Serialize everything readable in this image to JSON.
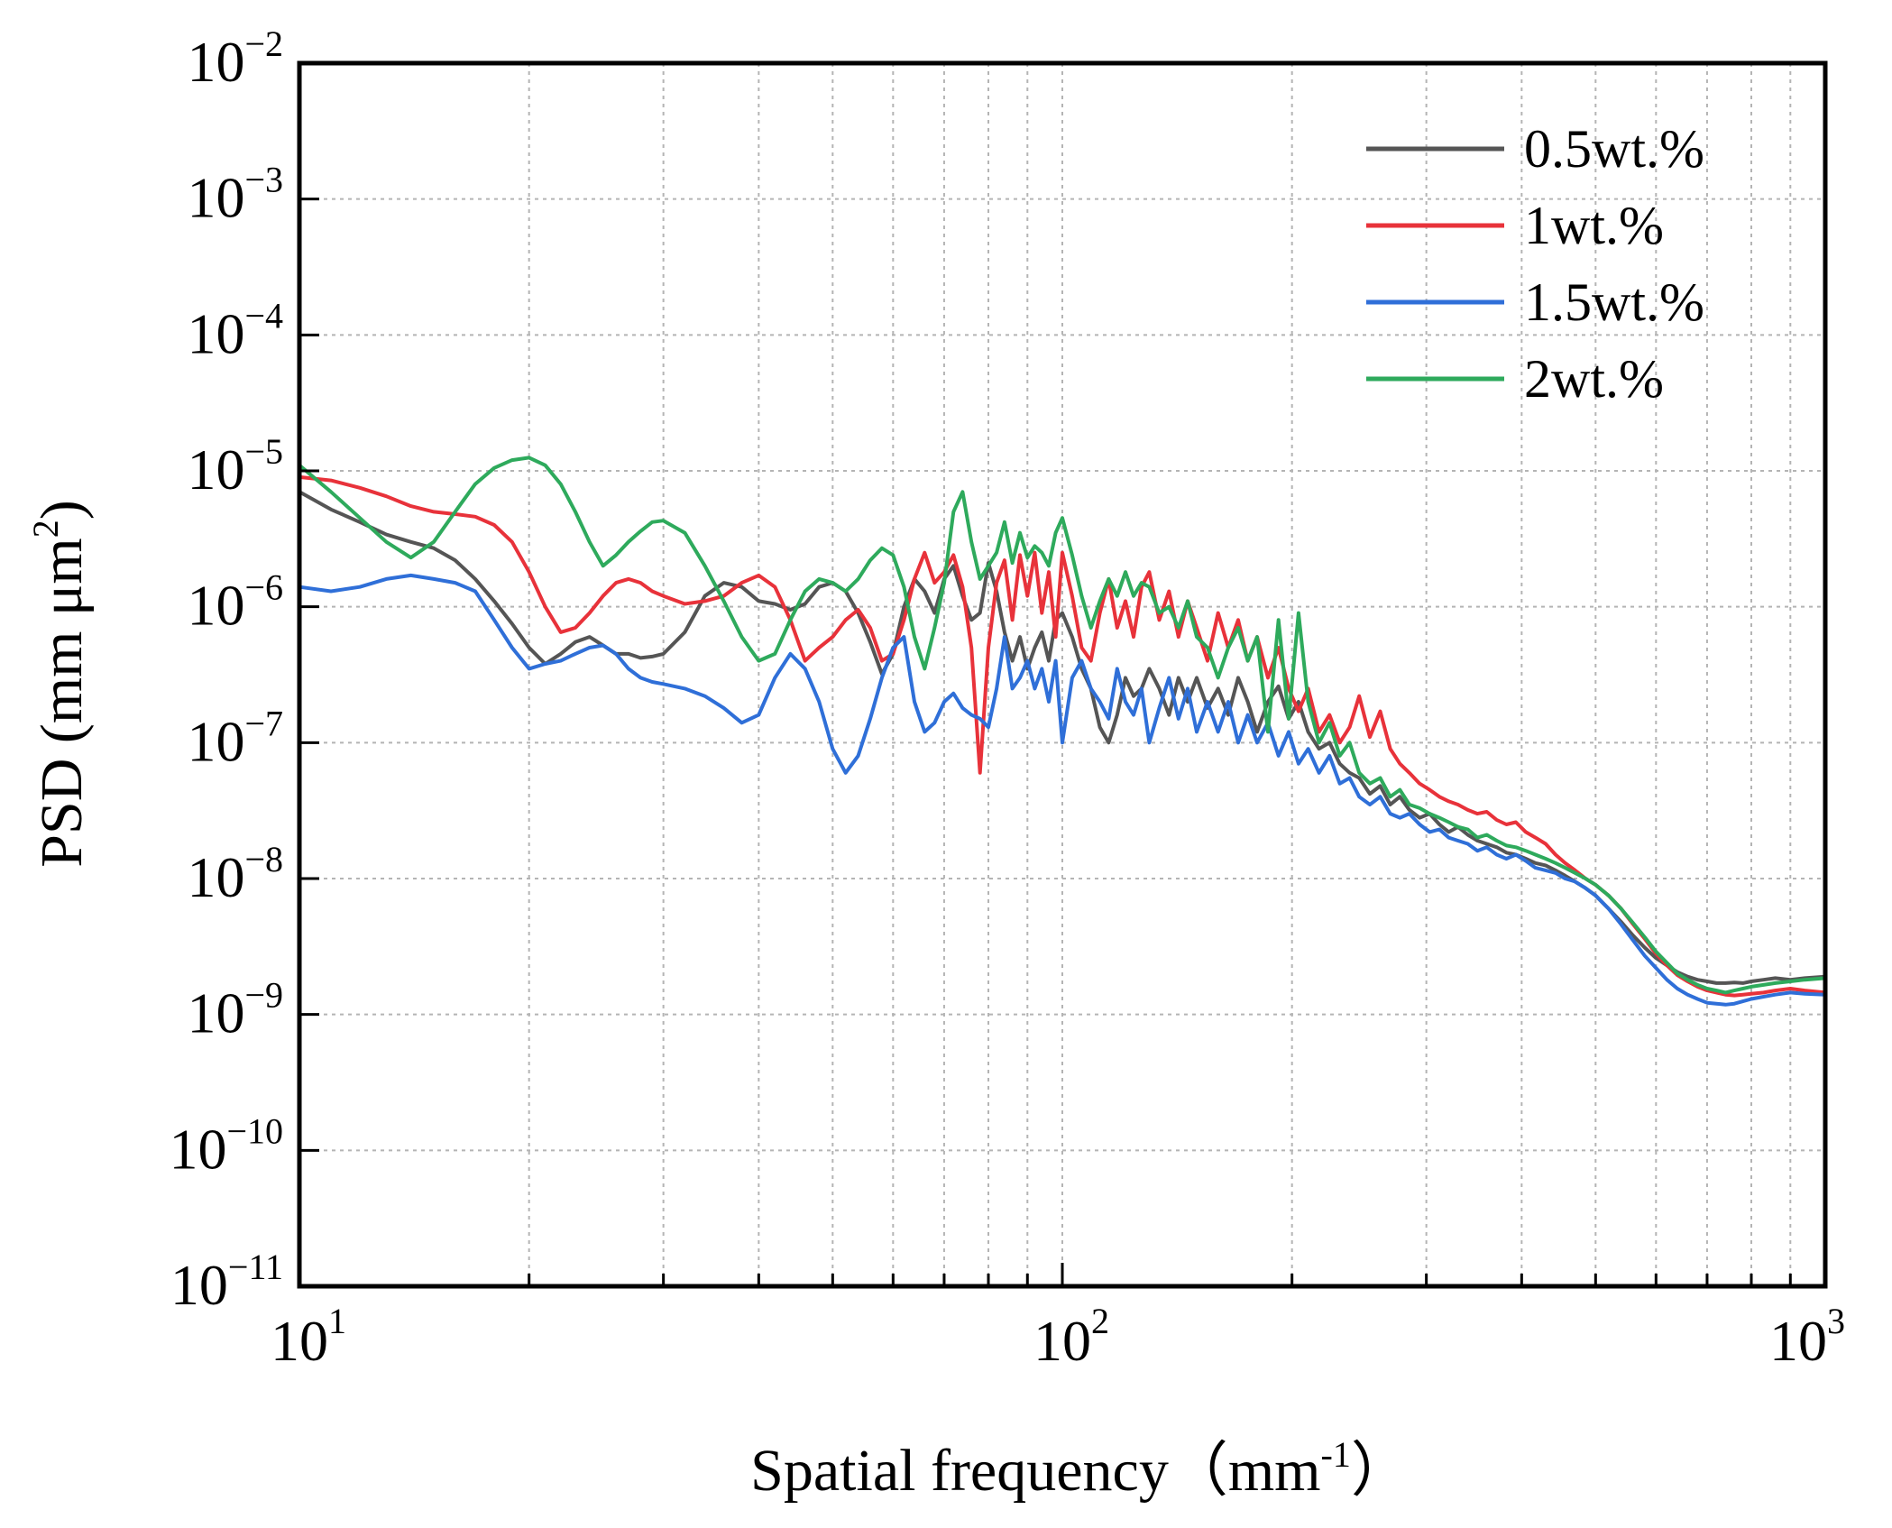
{
  "chart_data": {
    "type": "line",
    "x_scale": "log",
    "y_scale": "log",
    "xlim": [
      10,
      1000
    ],
    "ylim": [
      1e-11,
      0.01
    ],
    "grid": true,
    "legend_position": "top-right",
    "xlabel": {
      "main": "Spatial frequency（mm",
      "sup": "-1",
      "tail": "）"
    },
    "ylabel": {
      "main": "PSD (mm μm",
      "sup": "2",
      "tail": ")"
    },
    "x_ticks": [
      {
        "value": 10,
        "base": "10",
        "exp": "1"
      },
      {
        "value": 100,
        "base": "10",
        "exp": "2"
      },
      {
        "value": 1000,
        "base": "10",
        "exp": "3"
      }
    ],
    "y_ticks": [
      {
        "value": 0.01,
        "base": "10",
        "exp": "−2"
      },
      {
        "value": 0.001,
        "base": "10",
        "exp": "−3"
      },
      {
        "value": 0.0001,
        "base": "10",
        "exp": "−4"
      },
      {
        "value": 1e-05,
        "base": "10",
        "exp": "−5"
      },
      {
        "value": 1e-06,
        "base": "10",
        "exp": "−6"
      },
      {
        "value": 1e-07,
        "base": "10",
        "exp": "−7"
      },
      {
        "value": 1e-08,
        "base": "10",
        "exp": "−8"
      },
      {
        "value": 1e-09,
        "base": "10",
        "exp": "−9"
      },
      {
        "value": 1e-10,
        "base": "10",
        "exp": "−10"
      },
      {
        "value": 1e-11,
        "base": "10",
        "exp": "−11"
      }
    ],
    "series": [
      {
        "name": "0.5wt.%",
        "color": "#555555",
        "x": [
          10,
          11,
          12,
          13,
          14,
          15,
          16,
          17,
          18,
          19,
          20,
          21,
          22,
          23,
          24,
          25,
          26,
          27,
          28,
          29,
          30,
          32,
          34,
          36,
          38,
          40,
          42,
          44,
          46,
          48,
          50,
          52,
          54,
          56,
          58,
          60,
          62,
          64,
          66,
          68,
          70,
          72,
          74,
          76,
          78,
          80,
          82,
          84,
          86,
          88,
          90,
          92,
          94,
          96,
          98,
          100,
          103,
          106,
          109,
          112,
          115,
          118,
          121,
          124,
          127,
          130,
          134,
          138,
          142,
          146,
          150,
          155,
          160,
          165,
          170,
          175,
          180,
          186,
          192,
          198,
          204,
          210,
          217,
          224,
          231,
          238,
          245,
          253,
          261,
          269,
          277,
          285,
          294,
          303,
          312,
          321,
          330,
          340,
          350,
          360,
          371,
          382,
          393,
          405,
          417,
          430,
          443,
          456,
          470,
          485,
          500,
          520,
          540,
          560,
          580,
          600,
          620,
          640,
          660,
          680,
          700,
          720,
          740,
          760,
          780,
          800,
          830,
          860,
          900,
          940,
          1000
        ],
        "y": [
          7e-06,
          5.2e-06,
          4.2e-06,
          3.4e-06,
          3e-06,
          2.7e-06,
          2.2e-06,
          1.6e-06,
          1.1e-06,
          7.5e-07,
          5e-07,
          3.8e-07,
          4.5e-07,
          5.5e-07,
          6e-07,
          5.2e-07,
          4.5e-07,
          4.5e-07,
          4.2e-07,
          4.3e-07,
          4.5e-07,
          6.5e-07,
          1.2e-06,
          1.5e-06,
          1.4e-06,
          1.1e-06,
          1.05e-06,
          9.5e-07,
          1.05e-06,
          1.4e-06,
          1.5e-06,
          1.3e-06,
          9e-07,
          5.5e-07,
          3.2e-07,
          4.5e-07,
          1e-06,
          1.6e-06,
          1.3e-06,
          9e-07,
          1.6e-06,
          2e-06,
          1.2e-06,
          8e-07,
          9e-07,
          2.1e-06,
          1.3e-06,
          6.5e-07,
          4e-07,
          6e-07,
          3.5e-07,
          5e-07,
          6.5e-07,
          4e-07,
          8e-07,
          9e-07,
          6e-07,
          3.5e-07,
          2.5e-07,
          1.3e-07,
          1e-07,
          1.6e-07,
          3e-07,
          2.2e-07,
          2.5e-07,
          3.5e-07,
          2.5e-07,
          1.6e-07,
          3e-07,
          2e-07,
          3e-07,
          1.8e-07,
          2.5e-07,
          1.6e-07,
          3e-07,
          2e-07,
          1.2e-07,
          2e-07,
          2.6e-07,
          1.5e-07,
          2e-07,
          1.2e-07,
          9e-08,
          1e-07,
          7e-08,
          6e-08,
          5.5e-08,
          4.2e-08,
          4.8e-08,
          3.5e-08,
          4e-08,
          3.2e-08,
          2.8e-08,
          3e-08,
          2.5e-08,
          2.2e-08,
          2.4e-08,
          2.1e-08,
          1.9e-08,
          1.8e-08,
          1.7e-08,
          1.55e-08,
          1.5e-08,
          1.4e-08,
          1.3e-08,
          1.25e-08,
          1.15e-08,
          1.05e-08,
          9.5e-09,
          8.5e-09,
          7.5e-09,
          6e-09,
          4.8e-09,
          3.8e-09,
          3.1e-09,
          2.6e-09,
          2.3e-09,
          2.05e-09,
          1.9e-09,
          1.8e-09,
          1.75e-09,
          1.7e-09,
          1.7e-09,
          1.72e-09,
          1.7e-09,
          1.75e-09,
          1.8e-09,
          1.85e-09,
          1.8e-09,
          1.85e-09,
          1.9e-09
        ]
      },
      {
        "name": "1wt.%",
        "color": "#e8323a",
        "x": [
          10,
          11,
          12,
          13,
          14,
          15,
          16,
          17,
          18,
          19,
          20,
          21,
          22,
          23,
          24,
          25,
          26,
          27,
          28,
          29,
          30,
          32,
          34,
          36,
          38,
          40,
          42,
          44,
          46,
          48,
          50,
          52,
          54,
          56,
          58,
          60,
          62,
          64,
          66,
          68,
          70,
          72,
          74,
          76,
          78,
          80,
          82,
          84,
          86,
          88,
          90,
          92,
          94,
          96,
          98,
          100,
          103,
          106,
          109,
          112,
          115,
          118,
          121,
          124,
          127,
          130,
          134,
          138,
          142,
          146,
          150,
          155,
          160,
          165,
          170,
          175,
          180,
          186,
          192,
          198,
          204,
          210,
          217,
          224,
          231,
          238,
          245,
          253,
          261,
          269,
          277,
          285,
          294,
          303,
          312,
          321,
          330,
          340,
          350,
          360,
          371,
          382,
          393,
          405,
          417,
          430,
          443,
          456,
          470,
          485,
          500,
          520,
          540,
          560,
          580,
          600,
          620,
          640,
          660,
          680,
          700,
          720,
          740,
          760,
          780,
          800,
          830,
          860,
          900,
          940,
          1000
        ],
        "y": [
          9e-06,
          8.5e-06,
          7.5e-06,
          6.5e-06,
          5.5e-06,
          5e-06,
          4.8e-06,
          4.6e-06,
          4e-06,
          3e-06,
          1.8e-06,
          1e-06,
          6.5e-07,
          7e-07,
          9e-07,
          1.2e-06,
          1.5e-06,
          1.6e-06,
          1.5e-06,
          1.3e-06,
          1.2e-06,
          1.05e-06,
          1.1e-06,
          1.2e-06,
          1.5e-06,
          1.7e-06,
          1.4e-06,
          8e-07,
          4e-07,
          5e-07,
          6e-07,
          8e-07,
          9.5e-07,
          7e-07,
          4e-07,
          4.5e-07,
          8e-07,
          1.6e-06,
          2.5e-06,
          1.5e-06,
          1.8e-06,
          2.4e-06,
          1.4e-06,
          5e-07,
          6e-08,
          5e-07,
          1.5e-06,
          2.2e-06,
          8e-07,
          2.4e-06,
          1.2e-06,
          2.5e-06,
          9e-07,
          1.8e-06,
          6e-07,
          2.5e-06,
          1.2e-06,
          5e-07,
          4e-07,
          9e-07,
          1.6e-06,
          7e-07,
          1.1e-06,
          6e-07,
          1.4e-06,
          1.8e-06,
          8e-07,
          1.3e-06,
          6e-07,
          1.1e-06,
          7e-07,
          4e-07,
          9e-07,
          5e-07,
          8e-07,
          4e-07,
          6e-07,
          3e-07,
          5e-07,
          2.5e-07,
          1.7e-07,
          2.5e-07,
          1.2e-07,
          1.6e-07,
          1e-07,
          1.3e-07,
          2.2e-07,
          1.1e-07,
          1.7e-07,
          9e-08,
          7e-08,
          6e-08,
          5e-08,
          4.5e-08,
          4e-08,
          3.7e-08,
          3.5e-08,
          3.2e-08,
          3e-08,
          3.1e-08,
          2.7e-08,
          2.5e-08,
          2.6e-08,
          2.2e-08,
          2e-08,
          1.8e-08,
          1.5e-08,
          1.3e-08,
          1.15e-08,
          1e-08,
          9e-09,
          7.5e-09,
          6e-09,
          4.6e-09,
          3.6e-09,
          2.8e-09,
          2.3e-09,
          1.95e-09,
          1.75e-09,
          1.6e-09,
          1.5e-09,
          1.45e-09,
          1.4e-09,
          1.38e-09,
          1.4e-09,
          1.42e-09,
          1.45e-09,
          1.5e-09,
          1.55e-09,
          1.5e-09,
          1.45e-09
        ]
      },
      {
        "name": "1.5wt.%",
        "color": "#2f6fd8",
        "x": [
          10,
          11,
          12,
          13,
          14,
          15,
          16,
          17,
          18,
          19,
          20,
          21,
          22,
          23,
          24,
          25,
          26,
          27,
          28,
          29,
          30,
          32,
          34,
          36,
          38,
          40,
          42,
          44,
          46,
          48,
          50,
          52,
          54,
          56,
          58,
          60,
          62,
          64,
          66,
          68,
          70,
          72,
          74,
          76,
          78,
          80,
          82,
          84,
          86,
          88,
          90,
          92,
          94,
          96,
          98,
          100,
          103,
          106,
          109,
          112,
          115,
          118,
          121,
          124,
          127,
          130,
          134,
          138,
          142,
          146,
          150,
          155,
          160,
          165,
          170,
          175,
          180,
          186,
          192,
          198,
          204,
          210,
          217,
          224,
          231,
          238,
          245,
          253,
          261,
          269,
          277,
          285,
          294,
          303,
          312,
          321,
          330,
          340,
          350,
          360,
          371,
          382,
          393,
          405,
          417,
          430,
          443,
          456,
          470,
          485,
          500,
          520,
          540,
          560,
          580,
          600,
          620,
          640,
          660,
          680,
          700,
          720,
          740,
          760,
          780,
          800,
          830,
          860,
          900,
          940,
          1000
        ],
        "y": [
          1.4e-06,
          1.3e-06,
          1.4e-06,
          1.6e-06,
          1.7e-06,
          1.6e-06,
          1.5e-06,
          1.3e-06,
          8e-07,
          5e-07,
          3.5e-07,
          3.8e-07,
          4e-07,
          4.5e-07,
          5e-07,
          5.2e-07,
          4.5e-07,
          3.5e-07,
          3e-07,
          2.8e-07,
          2.7e-07,
          2.5e-07,
          2.2e-07,
          1.8e-07,
          1.4e-07,
          1.6e-07,
          3e-07,
          4.5e-07,
          3.5e-07,
          2e-07,
          9e-08,
          6e-08,
          8e-08,
          1.5e-07,
          3e-07,
          5e-07,
          6e-07,
          2e-07,
          1.2e-07,
          1.4e-07,
          2e-07,
          2.3e-07,
          1.8e-07,
          1.6e-07,
          1.5e-07,
          1.3e-07,
          2.5e-07,
          6e-07,
          2.5e-07,
          3e-07,
          4e-07,
          2.5e-07,
          3.5e-07,
          2e-07,
          4e-07,
          1e-07,
          3e-07,
          4e-07,
          2.5e-07,
          2e-07,
          1.5e-07,
          3.5e-07,
          2e-07,
          1.6e-07,
          2.5e-07,
          1e-07,
          1.8e-07,
          3e-07,
          1.5e-07,
          2.5e-07,
          1.2e-07,
          2e-07,
          1.2e-07,
          2e-07,
          1e-07,
          1.6e-07,
          1e-07,
          1.4e-07,
          8e-08,
          1.2e-07,
          7e-08,
          9e-08,
          6e-08,
          8e-08,
          5e-08,
          5.5e-08,
          4e-08,
          3.5e-08,
          4e-08,
          3e-08,
          2.8e-08,
          3e-08,
          2.5e-08,
          2.2e-08,
          2.3e-08,
          2e-08,
          1.9e-08,
          1.8e-08,
          1.6e-08,
          1.7e-08,
          1.5e-08,
          1.4e-08,
          1.5e-08,
          1.35e-08,
          1.2e-08,
          1.15e-08,
          1.1e-08,
          1e-08,
          9.5e-09,
          8.5e-09,
          7.5e-09,
          6e-09,
          4.6e-09,
          3.5e-09,
          2.7e-09,
          2.2e-09,
          1.8e-09,
          1.55e-09,
          1.4e-09,
          1.3e-09,
          1.22e-09,
          1.2e-09,
          1.18e-09,
          1.2e-09,
          1.25e-09,
          1.3e-09,
          1.35e-09,
          1.4e-09,
          1.45e-09,
          1.42e-09,
          1.4e-09
        ]
      },
      {
        "name": "2wt.%",
        "color": "#2eaa5c",
        "x": [
          10,
          11,
          12,
          13,
          14,
          15,
          16,
          17,
          18,
          19,
          20,
          21,
          22,
          23,
          24,
          25,
          26,
          27,
          28,
          29,
          30,
          32,
          34,
          36,
          38,
          40,
          42,
          44,
          46,
          48,
          50,
          52,
          54,
          56,
          58,
          60,
          62,
          64,
          66,
          68,
          70,
          72,
          74,
          76,
          78,
          80,
          82,
          84,
          86,
          88,
          90,
          92,
          94,
          96,
          98,
          100,
          103,
          106,
          109,
          112,
          115,
          118,
          121,
          124,
          127,
          130,
          134,
          138,
          142,
          146,
          150,
          155,
          160,
          165,
          170,
          175,
          180,
          186,
          192,
          198,
          204,
          210,
          217,
          224,
          231,
          238,
          245,
          253,
          261,
          269,
          277,
          285,
          294,
          303,
          312,
          321,
          330,
          340,
          350,
          360,
          371,
          382,
          393,
          405,
          417,
          430,
          443,
          456,
          470,
          485,
          500,
          520,
          540,
          560,
          580,
          600,
          620,
          640,
          660,
          680,
          700,
          720,
          740,
          760,
          780,
          800,
          830,
          860,
          900,
          940,
          1000
        ],
        "y": [
          1.1e-05,
          7e-06,
          4.5e-06,
          3e-06,
          2.3e-06,
          3e-06,
          5e-06,
          8e-06,
          1.05e-05,
          1.2e-05,
          1.25e-05,
          1.1e-05,
          8e-06,
          5e-06,
          3e-06,
          2e-06,
          2.4e-06,
          3e-06,
          3.6e-06,
          4.2e-06,
          4.3e-06,
          3.5e-06,
          2e-06,
          1.1e-06,
          6e-07,
          4e-07,
          4.5e-07,
          8e-07,
          1.3e-06,
          1.6e-06,
          1.5e-06,
          1.3e-06,
          1.6e-06,
          2.2e-06,
          2.7e-06,
          2.4e-06,
          1.4e-06,
          6e-07,
          3.5e-07,
          7e-07,
          1.5e-06,
          5e-06,
          7e-06,
          3e-06,
          1.6e-06,
          2e-06,
          2.5e-06,
          4.2e-06,
          2.1e-06,
          3.5e-06,
          2.3e-06,
          2.8e-06,
          2.5e-06,
          2e-06,
          3.5e-06,
          4.5e-06,
          2.4e-06,
          1.2e-06,
          7e-07,
          1.1e-06,
          1.6e-06,
          1.2e-06,
          1.8e-06,
          1.2e-06,
          1.5e-06,
          1.4e-06,
          9e-07,
          1e-06,
          7e-07,
          1.1e-06,
          6e-07,
          5e-07,
          3e-07,
          5e-07,
          7e-07,
          4e-07,
          6e-07,
          1.2e-07,
          8e-07,
          1.5e-07,
          9e-07,
          2e-07,
          1e-07,
          1.4e-07,
          8e-08,
          1e-07,
          6e-08,
          5e-08,
          5.5e-08,
          4e-08,
          4.5e-08,
          3.5e-08,
          3.3e-08,
          3e-08,
          2.8e-08,
          2.6e-08,
          2.4e-08,
          2.3e-08,
          2e-08,
          2.1e-08,
          1.9e-08,
          1.75e-08,
          1.7e-08,
          1.6e-08,
          1.5e-08,
          1.4e-08,
          1.3e-08,
          1.2e-08,
          1.1e-08,
          1e-08,
          9e-09,
          7.5e-09,
          6e-09,
          4.7e-09,
          3.7e-09,
          2.9e-09,
          2.4e-09,
          2e-09,
          1.8e-09,
          1.65e-09,
          1.55e-09,
          1.5e-09,
          1.45e-09,
          1.5e-09,
          1.55e-09,
          1.6e-09,
          1.65e-09,
          1.7e-09,
          1.75e-09,
          1.8e-09,
          1.85e-09
        ]
      }
    ]
  }
}
